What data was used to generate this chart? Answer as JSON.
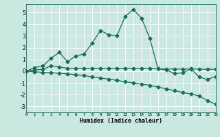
{
  "xlabel": "Humidex (Indice chaleur)",
  "bg_color": "#c8e8e0",
  "grid_color": "#ffffff",
  "line_color": "#1a6b5a",
  "xlim": [
    0,
    23
  ],
  "ylim": [
    -3.5,
    5.7
  ],
  "xticks": [
    0,
    1,
    2,
    3,
    4,
    5,
    6,
    7,
    8,
    9,
    10,
    11,
    12,
    13,
    14,
    15,
    16,
    17,
    18,
    19,
    20,
    21,
    22,
    23
  ],
  "yticks": [
    -3,
    -2,
    -1,
    0,
    1,
    2,
    3,
    4,
    5
  ],
  "series1_x": [
    0,
    1,
    2,
    3,
    4,
    5,
    6,
    7,
    8,
    9,
    10,
    11,
    12,
    13,
    14,
    15,
    16,
    17,
    18,
    19,
    20,
    21,
    22,
    23
  ],
  "series1_y": [
    0.0,
    0.3,
    0.45,
    1.1,
    1.6,
    0.8,
    1.3,
    1.45,
    2.4,
    3.45,
    3.1,
    3.0,
    4.65,
    5.25,
    4.5,
    2.8,
    0.2,
    0.1,
    -0.2,
    -0.15,
    0.2,
    -0.5,
    -0.7,
    -0.45
  ],
  "series2_x": [
    0,
    1,
    2,
    3,
    4,
    5,
    6,
    7,
    8,
    9,
    10,
    11,
    12,
    13,
    14,
    15,
    16,
    17,
    18,
    19,
    20,
    21,
    22,
    23
  ],
  "series2_y": [
    0.0,
    0.1,
    0.15,
    0.45,
    0.35,
    0.25,
    0.25,
    0.25,
    0.25,
    0.25,
    0.25,
    0.25,
    0.25,
    0.25,
    0.25,
    0.25,
    0.2,
    0.18,
    0.18,
    0.18,
    0.18,
    0.18,
    0.15,
    0.18
  ],
  "series3_x": [
    0,
    1,
    2,
    3,
    4,
    5,
    6,
    7,
    8,
    9,
    10,
    11,
    12,
    13,
    14,
    15,
    16,
    17,
    18,
    19,
    20,
    21,
    22,
    23
  ],
  "series3_y": [
    0.0,
    -0.05,
    -0.1,
    -0.13,
    -0.18,
    -0.23,
    -0.3,
    -0.38,
    -0.48,
    -0.58,
    -0.68,
    -0.78,
    -0.9,
    -1.0,
    -1.1,
    -1.2,
    -1.35,
    -1.5,
    -1.65,
    -1.8,
    -1.95,
    -2.1,
    -2.5,
    -2.8
  ],
  "marker": "D",
  "markersize": 2.5,
  "linewidth": 0.9
}
